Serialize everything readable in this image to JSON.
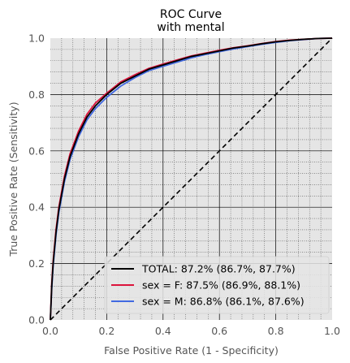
{
  "chart_data": {
    "type": "line",
    "title": "ROC Curve\nwith mental",
    "xlabel": "False Positive Rate (1 - Specificity)",
    "ylabel": "True Positive Rate (Sensitivity)",
    "xlim": [
      0,
      1
    ],
    "ylim": [
      0,
      1
    ],
    "xticks": [
      "0.0",
      "0.2",
      "0.4",
      "0.6",
      "0.8",
      "1.0"
    ],
    "yticks": [
      "0.0",
      "0.2",
      "0.4",
      "0.6",
      "0.8",
      "1.0"
    ],
    "grid": true,
    "minor_grid": true,
    "legend_position": "lower-right",
    "reference_line": {
      "x": [
        0,
        1
      ],
      "y": [
        0,
        1
      ],
      "style": "dashed",
      "color": "#000000"
    },
    "series": [
      {
        "name": "TOTAL: 87.2% (86.7%, 87.7%)",
        "color": "#000000",
        "x": [
          0,
          0.005,
          0.01,
          0.02,
          0.03,
          0.05,
          0.07,
          0.1,
          0.13,
          0.16,
          0.2,
          0.25,
          0.3,
          0.35,
          0.4,
          0.45,
          0.5,
          0.55,
          0.6,
          0.65,
          0.7,
          0.75,
          0.8,
          0.85,
          0.9,
          0.95,
          1.0
        ],
        "y": [
          0,
          0.12,
          0.2,
          0.31,
          0.39,
          0.5,
          0.58,
          0.66,
          0.72,
          0.76,
          0.8,
          0.84,
          0.865,
          0.89,
          0.905,
          0.92,
          0.935,
          0.945,
          0.955,
          0.965,
          0.972,
          0.98,
          0.987,
          0.992,
          0.996,
          0.999,
          1.0
        ]
      },
      {
        "name": "sex = F: 87.5% (86.9%, 88.1%)",
        "color": "#dc143c",
        "x": [
          0,
          0.005,
          0.01,
          0.02,
          0.03,
          0.05,
          0.07,
          0.1,
          0.13,
          0.16,
          0.2,
          0.25,
          0.3,
          0.35,
          0.4,
          0.45,
          0.5,
          0.55,
          0.6,
          0.65,
          0.7,
          0.75,
          0.8,
          0.85,
          0.9,
          0.95,
          1.0
        ],
        "y": [
          0,
          0.13,
          0.21,
          0.32,
          0.4,
          0.51,
          0.59,
          0.67,
          0.73,
          0.77,
          0.805,
          0.845,
          0.87,
          0.893,
          0.908,
          0.923,
          0.937,
          0.947,
          0.957,
          0.966,
          0.973,
          0.981,
          0.988,
          0.993,
          0.996,
          0.999,
          1.0
        ]
      },
      {
        "name": "sex = M: 86.8% (86.1%, 87.6%)",
        "color": "#4169e1",
        "x": [
          0,
          0.005,
          0.01,
          0.02,
          0.03,
          0.05,
          0.07,
          0.1,
          0.13,
          0.16,
          0.2,
          0.25,
          0.3,
          0.35,
          0.4,
          0.45,
          0.5,
          0.55,
          0.6,
          0.65,
          0.7,
          0.75,
          0.8,
          0.85,
          0.9,
          0.95,
          1.0
        ],
        "y": [
          0,
          0.11,
          0.19,
          0.3,
          0.38,
          0.49,
          0.57,
          0.65,
          0.71,
          0.75,
          0.79,
          0.83,
          0.86,
          0.885,
          0.9,
          0.915,
          0.93,
          0.942,
          0.952,
          0.962,
          0.97,
          0.978,
          0.985,
          0.991,
          0.995,
          0.999,
          1.0
        ]
      }
    ]
  },
  "colors": {
    "plot_background": "#e5e5e5",
    "major_grid": "#000000",
    "minor_grid": "#555555",
    "legend_background": "#e5e5e5"
  }
}
